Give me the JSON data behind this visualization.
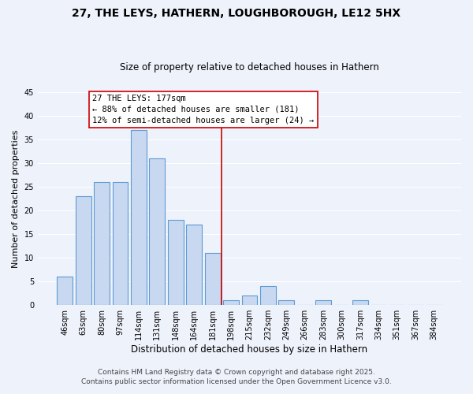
{
  "title": "27, THE LEYS, HATHERN, LOUGHBOROUGH, LE12 5HX",
  "subtitle": "Size of property relative to detached houses in Hathern",
  "xlabel": "Distribution of detached houses by size in Hathern",
  "ylabel": "Number of detached properties",
  "bar_labels": [
    "46sqm",
    "63sqm",
    "80sqm",
    "97sqm",
    "114sqm",
    "131sqm",
    "148sqm",
    "164sqm",
    "181sqm",
    "198sqm",
    "215sqm",
    "232sqm",
    "249sqm",
    "266sqm",
    "283sqm",
    "300sqm",
    "317sqm",
    "334sqm",
    "351sqm",
    "367sqm",
    "384sqm"
  ],
  "bar_values": [
    6,
    23,
    26,
    26,
    37,
    31,
    18,
    17,
    11,
    1,
    2,
    4,
    1,
    0,
    1,
    0,
    1,
    0,
    0,
    0,
    0
  ],
  "bar_color": "#c8d8f0",
  "bar_edge_color": "#5b9bd5",
  "ylim": [
    0,
    45
  ],
  "yticks": [
    0,
    5,
    10,
    15,
    20,
    25,
    30,
    35,
    40,
    45
  ],
  "vline_x": 8.5,
  "vline_color": "#cc0000",
  "annotation_title": "27 THE LEYS: 177sqm",
  "annotation_line1": "← 88% of detached houses are smaller (181)",
  "annotation_line2": "12% of semi-detached houses are larger (24) →",
  "annotation_box_color": "#ffffff",
  "annotation_box_edge": "#cc0000",
  "footer1": "Contains HM Land Registry data © Crown copyright and database right 2025.",
  "footer2": "Contains public sector information licensed under the Open Government Licence v3.0.",
  "background_color": "#eef2fb",
  "grid_color": "#ffffff",
  "title_fontsize": 10,
  "subtitle_fontsize": 8.5,
  "xlabel_fontsize": 8.5,
  "ylabel_fontsize": 8,
  "tick_fontsize": 7,
  "footer_fontsize": 6.5,
  "ann_fontsize": 7.5
}
